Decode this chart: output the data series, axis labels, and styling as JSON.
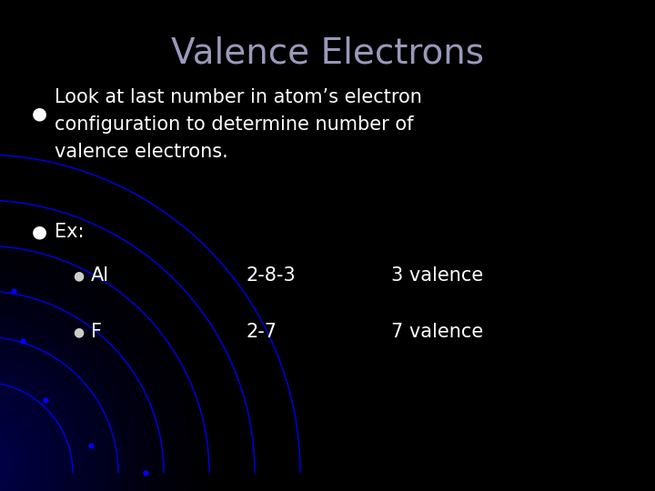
{
  "title": "Valence Electrons",
  "title_color": "#9999bb",
  "title_fontsize": 28,
  "background_color": "#000000",
  "bullet1_text_line1": "Look at last number in atom’s electron",
  "bullet1_text_line2": "configuration to determine number of",
  "bullet1_text_line3": "valence electrons.",
  "bullet2_text": "Ex:",
  "sub_bullet1_label": "Al",
  "sub_bullet1_col2": "2-8-3",
  "sub_bullet1_col3": "3 valence",
  "sub_bullet2_label": "F",
  "sub_bullet2_col2": "2-7",
  "sub_bullet2_col3": "7 valence",
  "text_color": "#ffffff",
  "bullet_color": "#ffffff",
  "sub_bullet_color": "#cccccc",
  "arc_color": "#0000cc",
  "arc_dot_color": "#0000ff",
  "glow_color": "#000066"
}
